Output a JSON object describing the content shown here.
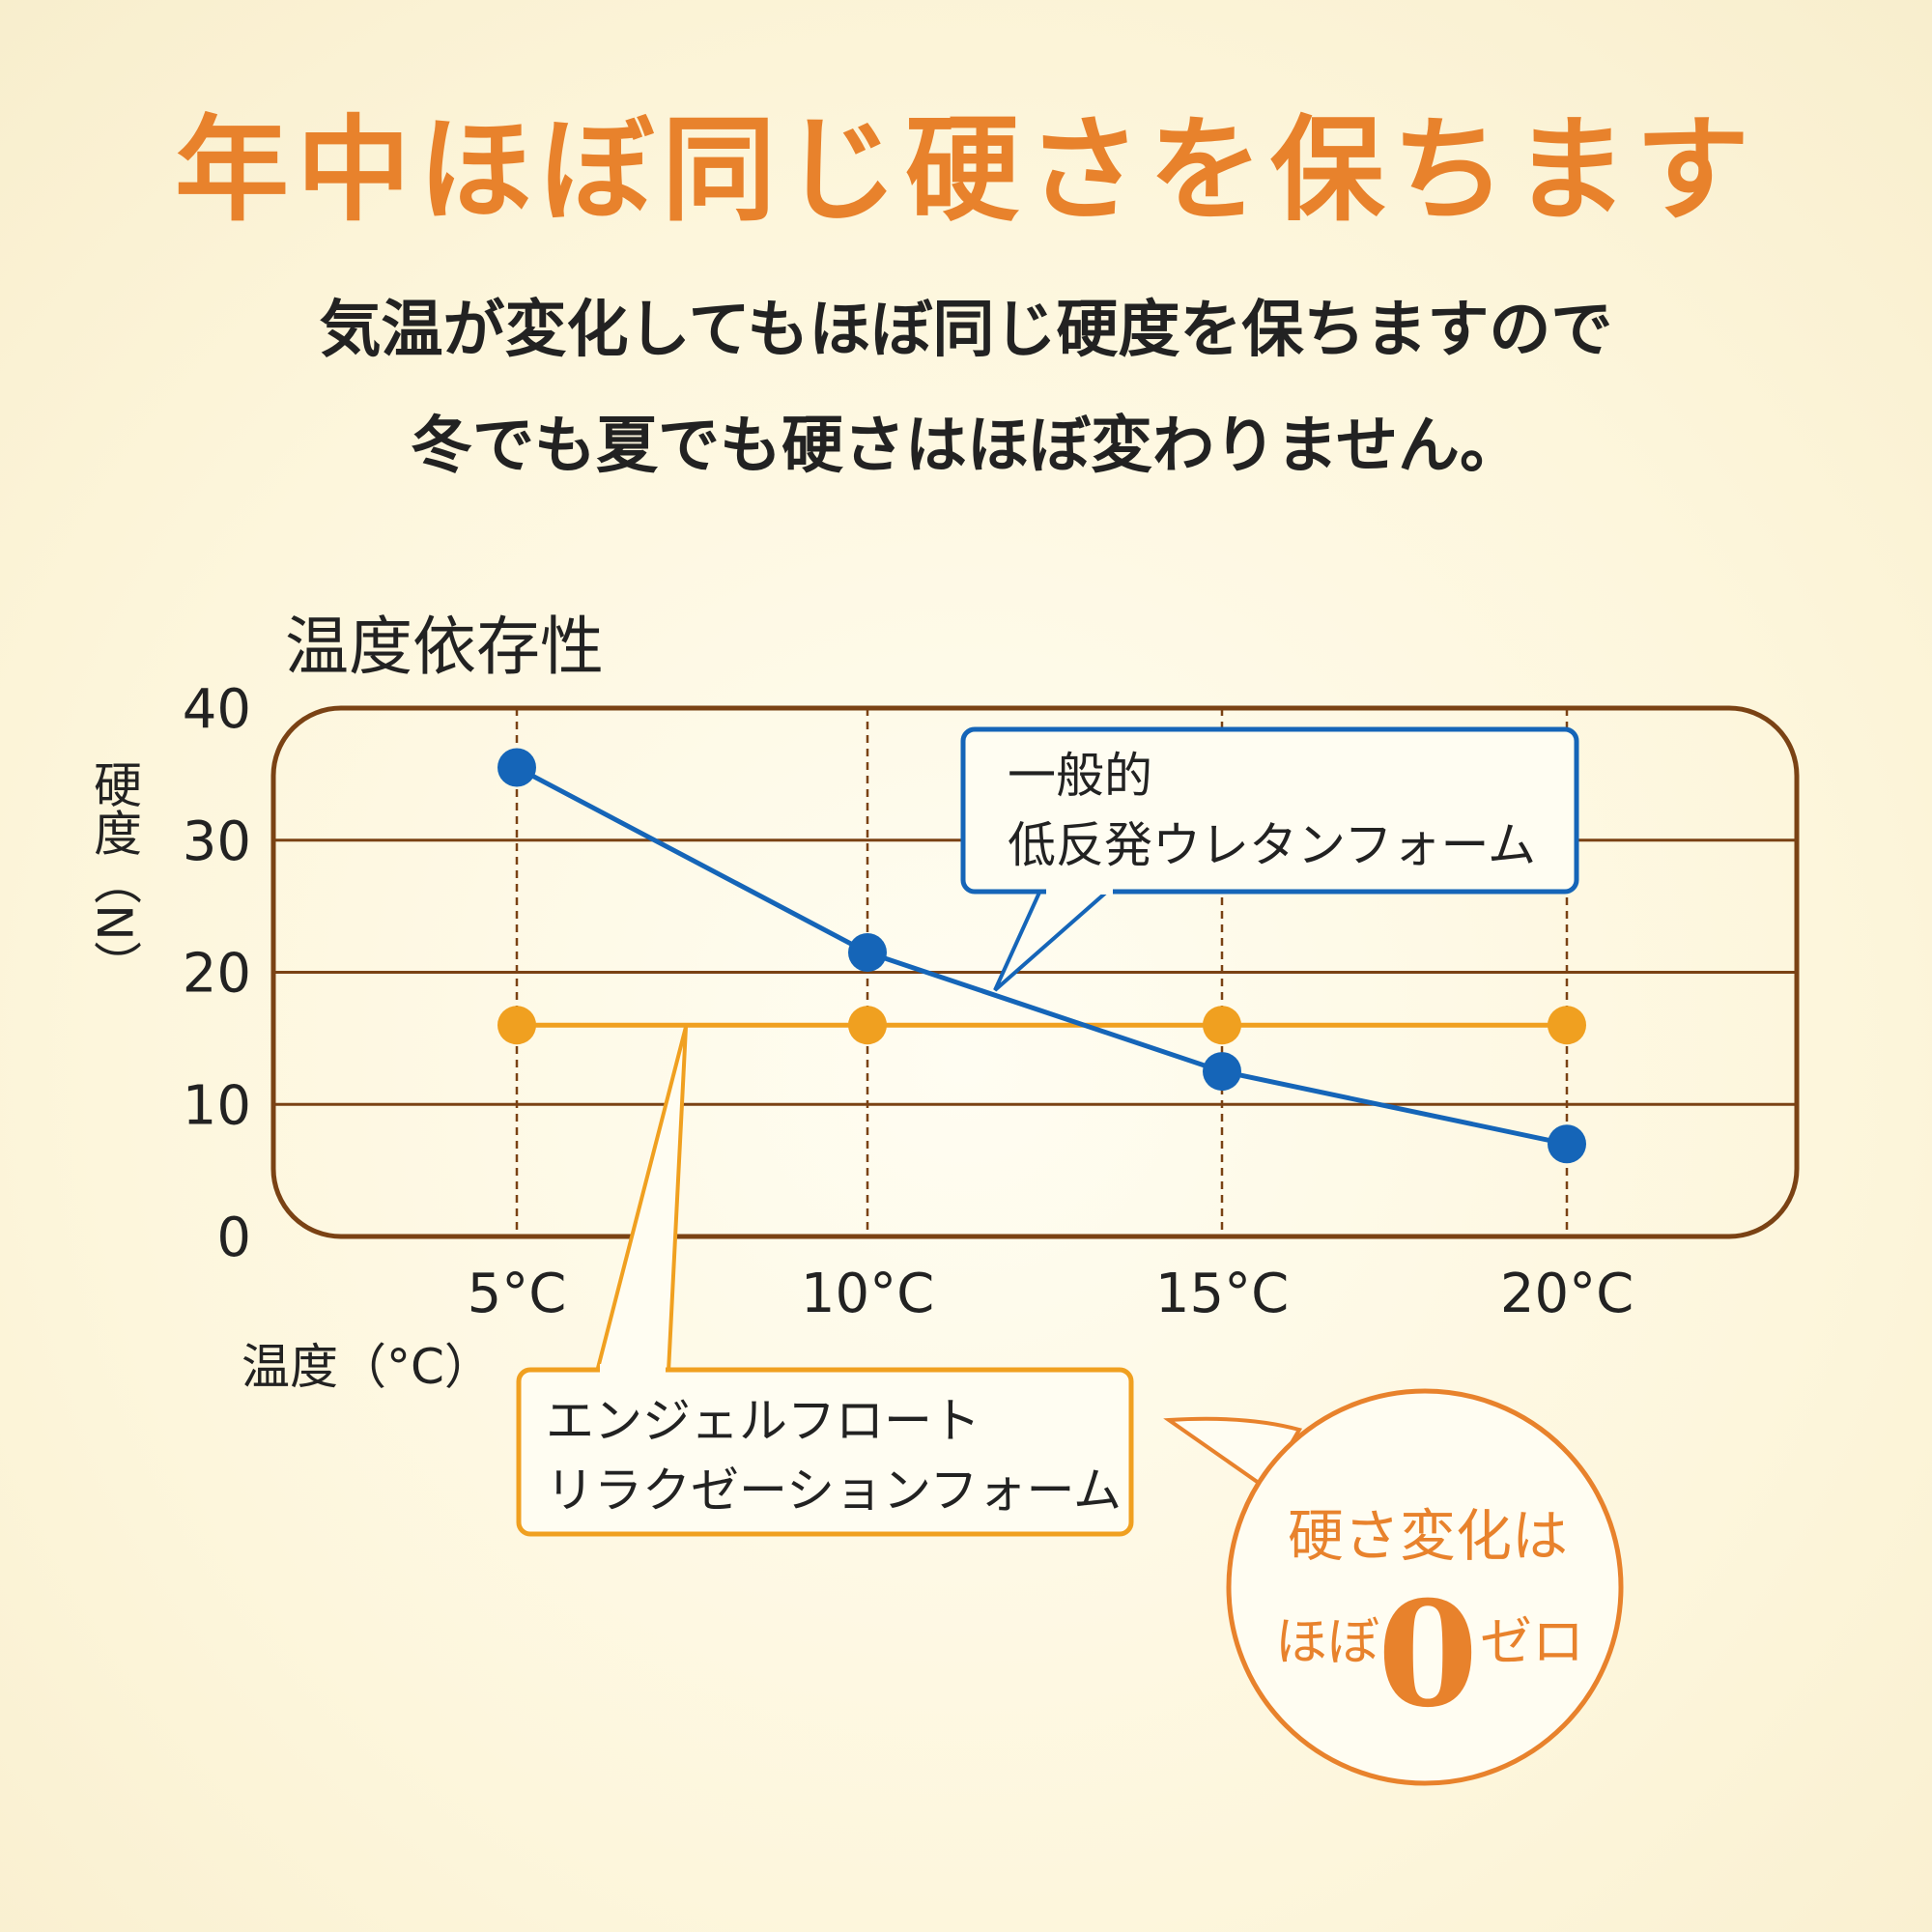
{
  "headline": "年中ほぼ同じ硬さを保ちます",
  "subtitle_line1": "気温が変化してもほぼ同じ硬度を保ちますので",
  "subtitle_line2": "冬でも夏でも硬さはほぼ変わりません。",
  "colors": {
    "accent": "#e8822c",
    "general_series": "#1565b8",
    "angel_series": "#f0a020",
    "frame": "#7a4214"
  },
  "callout_general": {
    "line1": "一般的",
    "line2": "低反発ウレタンフォーム"
  },
  "callout_angel": {
    "line1": "エンジェルフロート",
    "line2": "リラクゼーションフォーム"
  },
  "badge": {
    "line1": "硬さ変化は",
    "prefix": "ほぼ",
    "zero": "0",
    "suffix": "ゼロ"
  },
  "chart_data": {
    "type": "line",
    "title": "温度依存性",
    "xlabel": "温度（°C）",
    "ylabel": "硬度（N）",
    "categories": [
      "5°C",
      "10°C",
      "15°C",
      "20°C"
    ],
    "ylim": [
      0,
      40
    ],
    "yticks": [
      "0",
      "10",
      "20",
      "30",
      "40"
    ],
    "grid": true,
    "series": [
      {
        "name": "一般的 低反発ウレタンフォーム",
        "color": "#1565b8",
        "values": [
          35.5,
          21.5,
          12.5,
          7.0
        ]
      },
      {
        "name": "エンジェルフロート リラクゼーションフォーム",
        "color": "#f0a020",
        "values": [
          16.0,
          16.0,
          16.0,
          16.0
        ]
      }
    ]
  }
}
